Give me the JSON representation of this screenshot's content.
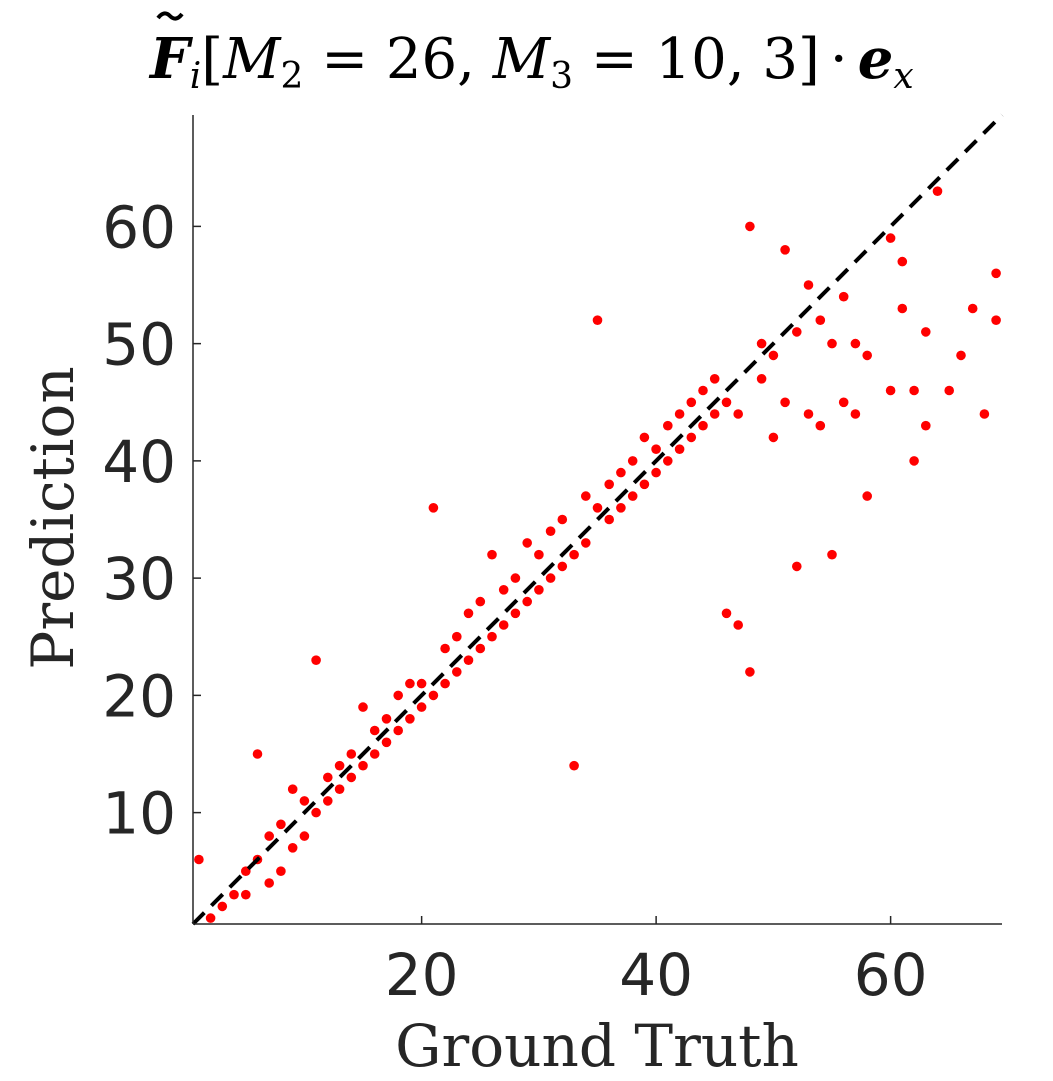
{
  "chart_data": {
    "type": "scatter",
    "title": {
      "F": "F",
      "i": "i",
      "open": "[",
      "M": "M",
      "sub2": "2",
      "eq1": " = 26, ",
      "sub3": "3",
      "eq2": " = 10, 3]",
      "dot": "·",
      "e": "e",
      "x": "x"
    },
    "xlabel": "Ground Truth",
    "ylabel": "Prediction",
    "xlim": [
      0.5,
      69.5
    ],
    "ylim": [
      0.5,
      69.5
    ],
    "xticks": [
      20,
      40,
      60
    ],
    "yticks": [
      10,
      20,
      30,
      40,
      50,
      60
    ],
    "grid": false,
    "reference_line": {
      "type": "identity",
      "style": "dashed",
      "color": "#000000"
    },
    "series": [
      {
        "color": "#ff0000",
        "points": [
          [
            1,
            6
          ],
          [
            2,
            1
          ],
          [
            3,
            2
          ],
          [
            4,
            3
          ],
          [
            5,
            5
          ],
          [
            5,
            3
          ],
          [
            6,
            6
          ],
          [
            6,
            15
          ],
          [
            7,
            4
          ],
          [
            7,
            8
          ],
          [
            8,
            5
          ],
          [
            8,
            9
          ],
          [
            9,
            7
          ],
          [
            9,
            12
          ],
          [
            10,
            8
          ],
          [
            10,
            11
          ],
          [
            11,
            10
          ],
          [
            11,
            23
          ],
          [
            12,
            11
          ],
          [
            12,
            13
          ],
          [
            13,
            12
          ],
          [
            13,
            14
          ],
          [
            14,
            13
          ],
          [
            14,
            15
          ],
          [
            15,
            14
          ],
          [
            15,
            19
          ],
          [
            16,
            15
          ],
          [
            16,
            17
          ],
          [
            17,
            16
          ],
          [
            17,
            18
          ],
          [
            18,
            17
          ],
          [
            18,
            20
          ],
          [
            19,
            18
          ],
          [
            19,
            21
          ],
          [
            20,
            19
          ],
          [
            20,
            21
          ],
          [
            21,
            20
          ],
          [
            21,
            36
          ],
          [
            22,
            21
          ],
          [
            22,
            24
          ],
          [
            23,
            22
          ],
          [
            23,
            25
          ],
          [
            24,
            23
          ],
          [
            24,
            27
          ],
          [
            25,
            24
          ],
          [
            25,
            28
          ],
          [
            26,
            25
          ],
          [
            26,
            32
          ],
          [
            27,
            26
          ],
          [
            27,
            29
          ],
          [
            28,
            27
          ],
          [
            28,
            30
          ],
          [
            29,
            28
          ],
          [
            29,
            33
          ],
          [
            30,
            29
          ],
          [
            30,
            32
          ],
          [
            31,
            30
          ],
          [
            31,
            34
          ],
          [
            32,
            31
          ],
          [
            32,
            35
          ],
          [
            33,
            14
          ],
          [
            33,
            32
          ],
          [
            34,
            33
          ],
          [
            34,
            37
          ],
          [
            35,
            52
          ],
          [
            35,
            36
          ],
          [
            36,
            35
          ],
          [
            36,
            38
          ],
          [
            37,
            36
          ],
          [
            37,
            39
          ],
          [
            38,
            37
          ],
          [
            38,
            40
          ],
          [
            39,
            38
          ],
          [
            39,
            42
          ],
          [
            40,
            39
          ],
          [
            40,
            41
          ],
          [
            41,
            40
          ],
          [
            41,
            43
          ],
          [
            42,
            41
          ],
          [
            42,
            44
          ],
          [
            43,
            42
          ],
          [
            43,
            45
          ],
          [
            44,
            43
          ],
          [
            44,
            46
          ],
          [
            45,
            44
          ],
          [
            45,
            47
          ],
          [
            46,
            27
          ],
          [
            46,
            45
          ],
          [
            47,
            26
          ],
          [
            47,
            44
          ],
          [
            48,
            22
          ],
          [
            48,
            60
          ],
          [
            49,
            47
          ],
          [
            49,
            50
          ],
          [
            50,
            42
          ],
          [
            50,
            49
          ],
          [
            51,
            45
          ],
          [
            51,
            58
          ],
          [
            52,
            31
          ],
          [
            52,
            51
          ],
          [
            53,
            44
          ],
          [
            53,
            55
          ],
          [
            54,
            43
          ],
          [
            54,
            52
          ],
          [
            55,
            32
          ],
          [
            55,
            50
          ],
          [
            56,
            45
          ],
          [
            56,
            54
          ],
          [
            57,
            44
          ],
          [
            57,
            50
          ],
          [
            58,
            37
          ],
          [
            58,
            49
          ],
          [
            60,
            46
          ],
          [
            60,
            59
          ],
          [
            61,
            53
          ],
          [
            61,
            57
          ],
          [
            62,
            40
          ],
          [
            62,
            46
          ],
          [
            63,
            43
          ],
          [
            63,
            51
          ],
          [
            64,
            63
          ],
          [
            65,
            46
          ],
          [
            66,
            49
          ],
          [
            67,
            53
          ],
          [
            68,
            44
          ],
          [
            69,
            52
          ],
          [
            69,
            56
          ]
        ]
      }
    ]
  }
}
